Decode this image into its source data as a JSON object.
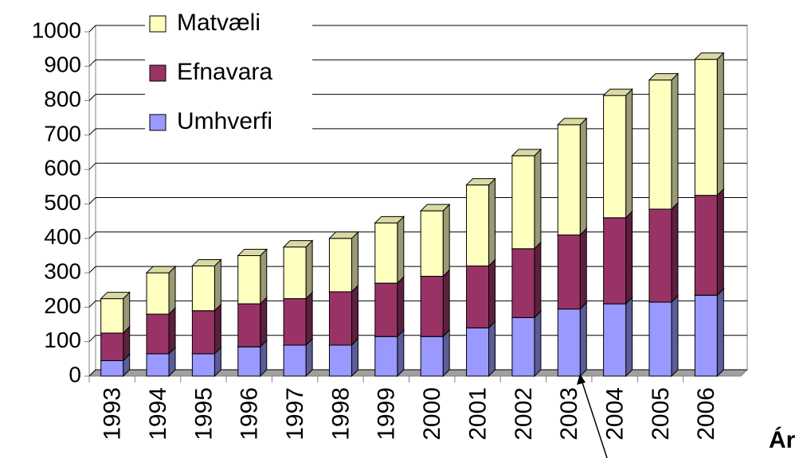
{
  "chart_data": {
    "type": "stacked_bar_3d",
    "x_label": "Ár",
    "categories": [
      "1993",
      "1994",
      "1995",
      "1996",
      "1997",
      "1998",
      "1999",
      "2000",
      "2001",
      "2002",
      "2003",
      "2004",
      "2005",
      "2006"
    ],
    "series": [
      {
        "name": "Umhverfi",
        "color": "#9999ff",
        "values": [
          45,
          65,
          65,
          85,
          90,
          90,
          115,
          115,
          140,
          170,
          195,
          210,
          215,
          235
        ]
      },
      {
        "name": "Efnavara",
        "color": "#993366",
        "values": [
          80,
          115,
          125,
          125,
          135,
          155,
          155,
          175,
          180,
          200,
          215,
          250,
          270,
          290
        ]
      },
      {
        "name": "Matvæli",
        "color": "#ffffc0",
        "values": [
          100,
          120,
          130,
          140,
          150,
          155,
          175,
          190,
          235,
          270,
          320,
          355,
          375,
          395
        ]
      }
    ],
    "ylim": [
      0,
      1000
    ],
    "yticks": [
      0,
      100,
      200,
      300,
      400,
      500,
      600,
      700,
      800,
      900,
      1000
    ],
    "grid": true
  }
}
